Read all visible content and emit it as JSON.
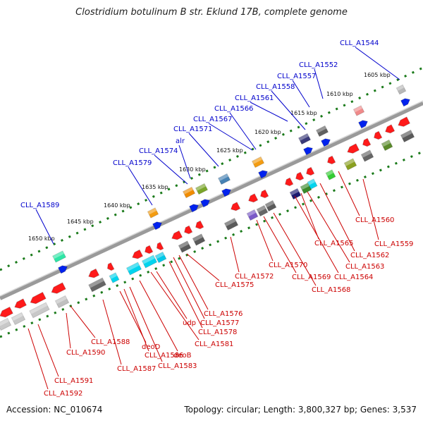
{
  "title": "Clostridium botulinum B str. Eklund 17B, complete genome",
  "footer": {
    "accession": "Accession: NC_010674",
    "info": "Topology: circular; Length: 3,800,327 bp; Genes: 3,537"
  },
  "colors": {
    "forward_label": "#0000cc",
    "reverse_label": "#cc0000",
    "backbone": "#8c8c8c",
    "tick": "#1a7a1a"
  },
  "kbp_ticks": [
    "1605 kbp",
    "1610 kbp",
    "1615 kbp",
    "1620 kbp",
    "1625 kbp",
    "1630 kbp",
    "1635 kbp",
    "1640 kbp",
    "1645 kbp",
    "1650 kbp"
  ],
  "forward_genes": [
    "CLL_A1544",
    "CLL_A1552",
    "CLL_A1557",
    "CLL_A1558",
    "CLL_A1561",
    "CLL_A1566",
    "CLL_A1567",
    "CLL_A1571",
    "alr",
    "CLL_A1574",
    "CLL_A1579",
    "CLL_A1589"
  ],
  "reverse_genes": [
    "CLL_A1559",
    "CLL_A1560",
    "CLL_A1562",
    "CLL_A1563",
    "CLL_A1564",
    "CLL_A1565",
    "CLL_A1568",
    "CLL_A1569",
    "CLL_A1570",
    "CLL_A1572",
    "CLL_A1575",
    "CLL_A1576",
    "CLL_A1577",
    "CLL_A1578",
    "udp",
    "CLL_A1581",
    "CLL_A1583",
    "deoB",
    "CLL_A1586",
    "deoD",
    "CLL_A1587",
    "CLL_A1588",
    "CLL_A1590",
    "CLL_A1591",
    "CLL_A1592"
  ]
}
